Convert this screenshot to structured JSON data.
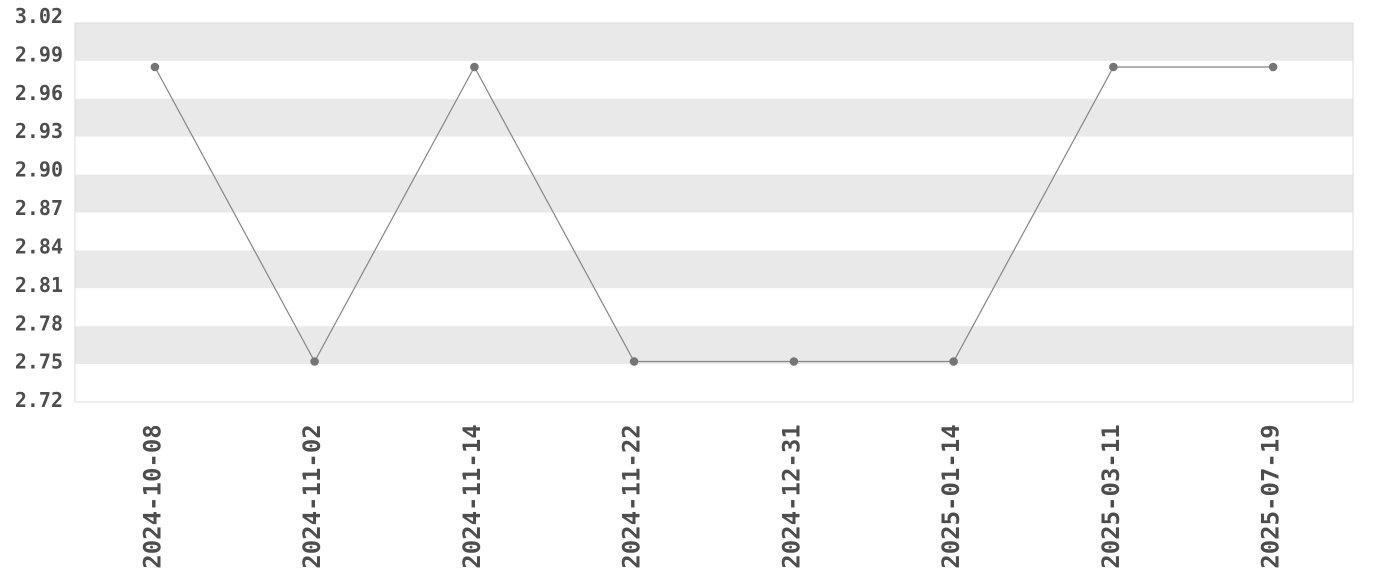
{
  "chart_data": {
    "type": "line",
    "title": "",
    "xlabel": "",
    "ylabel": "",
    "x": [
      "2024-10-08",
      "2024-11-02",
      "2024-11-14",
      "2024-11-22",
      "2024-12-31",
      "2025-01-14",
      "2025-03-11",
      "2025-07-19"
    ],
    "values": [
      2.98,
      2.75,
      2.98,
      2.75,
      2.75,
      2.75,
      2.98,
      2.98
    ],
    "ylim": [
      2.72,
      3.02
    ],
    "y_tick_step": 0.03,
    "y_tick_labels": [
      "3.02",
      "2.99",
      "2.96",
      "2.93",
      "2.90",
      "2.87",
      "2.84",
      "2.81",
      "2.78",
      "2.75",
      "2.72"
    ],
    "grid": "alternating horizontal bands, no vertical gridlines",
    "legend": "none",
    "x_tick_rotation_degrees": -90
  },
  "style": {
    "background_color": "#ffffff",
    "band_color": "#e9e9e9",
    "plot_border_color": "#dcdcdc",
    "line_color": "#858585",
    "point_color": "#757575",
    "tick_label_color": "#4d4d4d"
  }
}
